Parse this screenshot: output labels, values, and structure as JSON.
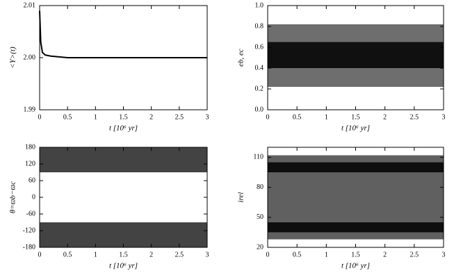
{
  "chart_data": [
    {
      "type": "line",
      "y_label": "<Y>(t)",
      "x_label": "t [10⁶ yr]",
      "x": [
        0,
        0.02,
        0.05,
        0.1,
        0.2,
        0.5,
        1,
        1.5,
        2,
        2.5,
        3
      ],
      "values": [
        2.009,
        2.003,
        2.001,
        2.0005,
        2.0003,
        2.0,
        2.0,
        2.0,
        2.0,
        2.0,
        2.0
      ],
      "color": "#000000",
      "xlim": [
        0,
        3
      ],
      "xticks": [
        0,
        0.5,
        1,
        1.5,
        2,
        2.5,
        3
      ],
      "ylim": [
        1.99,
        2.01
      ],
      "yticks": [
        1.99,
        {
          "value": 2,
          "label": "2.00"
        },
        2.01
      ]
    },
    {
      "type": "band",
      "y_label": "eb, ec",
      "x_label": "t [10⁶ yr]",
      "bands": [
        {
          "x": [
            0,
            3
          ],
          "low": [
            0.22,
            0.22
          ],
          "high": [
            0.82,
            0.82
          ],
          "color": "#555555"
        },
        {
          "x": [
            0,
            3
          ],
          "low": [
            0.4,
            0.4
          ],
          "high": [
            0.65,
            0.65
          ],
          "color": "#000000"
        }
      ],
      "xlim": [
        0,
        3
      ],
      "xticks": [
        0,
        0.5,
        1,
        1.5,
        2,
        2.5,
        3
      ],
      "ylim": [
        0,
        1
      ],
      "yticks": [
        {
          "value": 0,
          "label": "0.0"
        },
        0.2,
        0.4,
        0.6,
        0.8,
        {
          "value": 1,
          "label": "1.0"
        }
      ]
    },
    {
      "type": "band",
      "y_label": "θ=ϖb−ϖc",
      "x_label": "t [10⁶ yr]",
      "bands": [
        {
          "x": [
            0,
            3
          ],
          "low": [
            90,
            90
          ],
          "high": [
            180,
            180
          ],
          "color": "#222222"
        },
        {
          "x": [
            0,
            3
          ],
          "low": [
            -180,
            -180
          ],
          "high": [
            -90,
            -90
          ],
          "color": "#222222"
        }
      ],
      "xlim": [
        0,
        3
      ],
      "xticks": [
        0,
        0.5,
        1,
        1.5,
        2,
        2.5,
        3
      ],
      "ylim": [
        -180,
        180
      ],
      "yticks": [
        -180,
        -120,
        -60,
        0,
        60,
        120,
        180
      ]
    },
    {
      "type": "band",
      "y_label": "irel",
      "x_label": "t [10⁶ yr]",
      "bands": [
        {
          "x": [
            0,
            3
          ],
          "low": [
            28,
            28
          ],
          "high": [
            112,
            112
          ],
          "color": "#444444"
        },
        {
          "x": [
            0,
            3
          ],
          "low": [
            35,
            35
          ],
          "high": [
            45,
            45
          ],
          "color": "#000000"
        },
        {
          "x": [
            0,
            3
          ],
          "low": [
            95,
            95
          ],
          "high": [
            105,
            105
          ],
          "color": "#000000"
        }
      ],
      "xlim": [
        0,
        3
      ],
      "xticks": [
        0,
        0.5,
        1,
        1.5,
        2,
        2.5,
        3
      ],
      "ylim": [
        20,
        120
      ],
      "yticks": [
        20,
        50,
        80,
        110
      ]
    }
  ]
}
